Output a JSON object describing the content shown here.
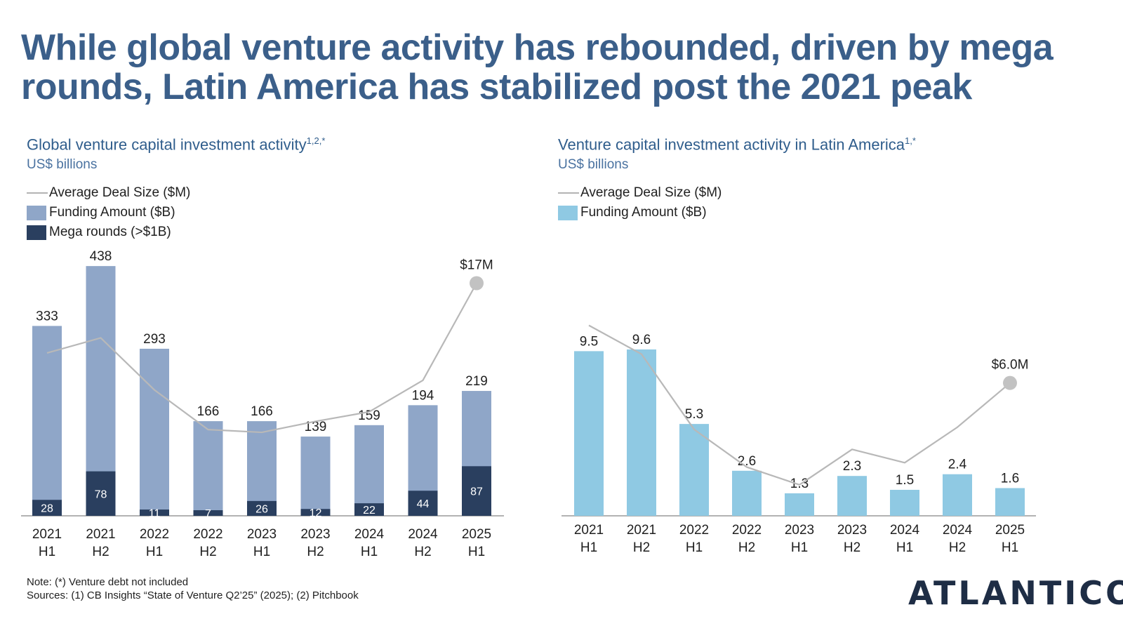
{
  "headline": "While global venture activity has rebounded, driven by mega rounds, Latin America has stabilized post the 2021 peak",
  "colors": {
    "headline": "#3b5f8a",
    "funding_global": "#8fa6c8",
    "mega": "#2a3f5f",
    "funding_latam": "#8fc9e3",
    "deal_line": "#b8b8b8"
  },
  "chart_data": [
    {
      "type": "bar",
      "title": "Global venture capital investment activity",
      "title_sup": "1,2,*",
      "units": "US$ billions",
      "legend": [
        "Average Deal Size ($M)",
        "Funding Amount ($B)",
        "Mega rounds (>$1B)"
      ],
      "categories": [
        [
          "2021",
          "H1"
        ],
        [
          "2021",
          "H2"
        ],
        [
          "2022",
          "H1"
        ],
        [
          "2022",
          "H2"
        ],
        [
          "2023",
          "H1"
        ],
        [
          "2023",
          "H2"
        ],
        [
          "2024",
          "H1"
        ],
        [
          "2024",
          "H2"
        ],
        [
          "2025",
          "H1"
        ]
      ],
      "ylim": [
        0,
        480
      ],
      "line_ylim": [
        0,
        20
      ],
      "series": [
        {
          "name": "Funding Amount ($B)",
          "values": [
            333,
            438,
            293,
            166,
            166,
            139,
            159,
            194,
            219
          ]
        },
        {
          "name": "Mega rounds (>$1B)",
          "values": [
            28,
            78,
            11,
            7,
            26,
            12,
            22,
            44,
            87
          ]
        },
        {
          "name": "Average Deal Size ($M)",
          "values": [
            11.9,
            13.0,
            9.2,
            6.3,
            6.1,
            6.9,
            7.6,
            9.9,
            17
          ]
        }
      ],
      "line_end_label": "$17M"
    },
    {
      "type": "bar",
      "title": "Venture capital investment activity in Latin America",
      "title_sup": "1,*",
      "units": "US$ billions",
      "legend": [
        "Average Deal Size ($M)",
        "Funding Amount ($B)"
      ],
      "categories": [
        [
          "2021",
          "H1"
        ],
        [
          "2021",
          "H2"
        ],
        [
          "2022",
          "H1"
        ],
        [
          "2022",
          "H2"
        ],
        [
          "2023",
          "H1"
        ],
        [
          "2023",
          "H2"
        ],
        [
          "2024",
          "H1"
        ],
        [
          "2024",
          "H2"
        ],
        [
          "2025",
          "H1"
        ]
      ],
      "ylim": [
        0,
        11.5
      ],
      "line_ylim": [
        0,
        9
      ],
      "series": [
        {
          "name": "Funding Amount ($B)",
          "values": [
            9.5,
            9.6,
            5.3,
            2.6,
            1.3,
            2.3,
            1.5,
            2.4,
            1.6
          ]
        },
        {
          "name": "Average Deal Size ($M)",
          "values": [
            8.6,
            7.3,
            3.9,
            2.2,
            1.4,
            3.0,
            2.4,
            4.0,
            6.0
          ]
        }
      ],
      "line_end_label": "$6.0M"
    }
  ],
  "footnote": {
    "note": "Note: (*) Venture debt not included",
    "sources": "Sources: (1) CB Insights “State of Venture Q2’25” (2025); (2) Pitchbook"
  },
  "logo": "ATLANTICO"
}
